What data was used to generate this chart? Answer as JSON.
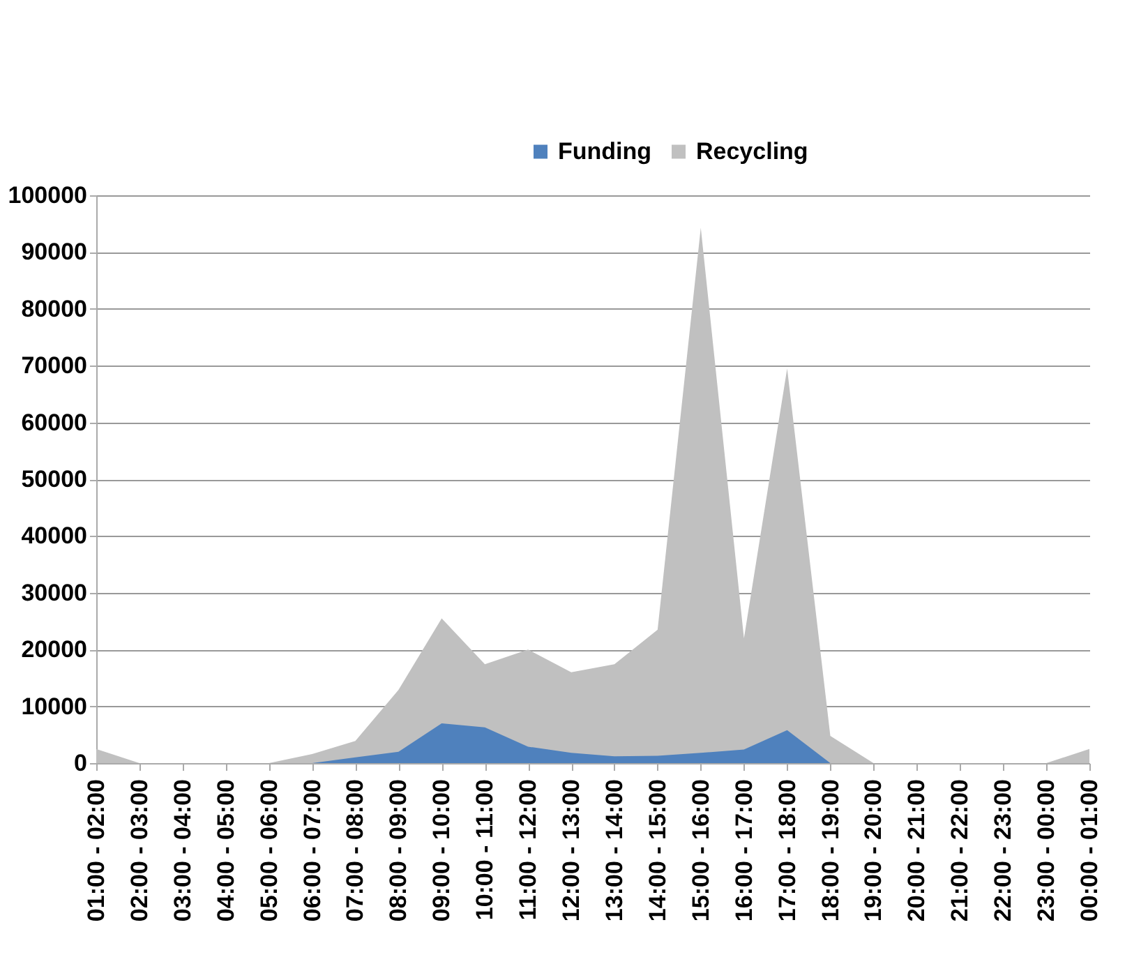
{
  "chart_data": {
    "type": "area",
    "categories": [
      "01:00 - 02:00",
      "02:00 - 03:00",
      "03:00 - 04:00",
      "04:00 - 05:00",
      "05:00 - 06:00",
      "06:00 - 07:00",
      "07:00 - 08:00",
      "08:00 - 09:00",
      "09:00 - 10:00",
      "10:00 - 11:00",
      "11:00 - 12:00",
      "12:00 - 13:00",
      "13:00 - 14:00",
      "14:00 - 15:00",
      "15:00 - 16:00",
      "16:00 - 17:00",
      "17:00 - 18:00",
      "18:00 - 19:00",
      "19:00 - 20:00",
      "20:00 - 21:00",
      "21:00 - 22:00",
      "22:00 - 23:00",
      "23:00 - 00:00",
      "00:00 - 01:00"
    ],
    "series": [
      {
        "name": "Funding",
        "color": "#4f81bd",
        "values": [
          0,
          0,
          0,
          0,
          0,
          0,
          1000,
          2000,
          7000,
          6300,
          2900,
          1800,
          1200,
          1300,
          1800,
          2400,
          5800,
          0,
          0,
          0,
          0,
          0,
          0,
          0
        ]
      },
      {
        "name": "Recycling",
        "color": "#c0c0c0",
        "values": [
          2500,
          0,
          0,
          0,
          0,
          1600,
          3900,
          12900,
          25500,
          17400,
          20000,
          16000,
          17400,
          23500,
          94300,
          22000,
          69500,
          4800,
          0,
          0,
          0,
          0,
          0,
          2500
        ]
      }
    ],
    "ylim": [
      0,
      100000
    ],
    "yticks": [
      0,
      10000,
      20000,
      30000,
      40000,
      50000,
      60000,
      70000,
      80000,
      90000,
      100000
    ],
    "grid": "y",
    "legend": "top"
  }
}
